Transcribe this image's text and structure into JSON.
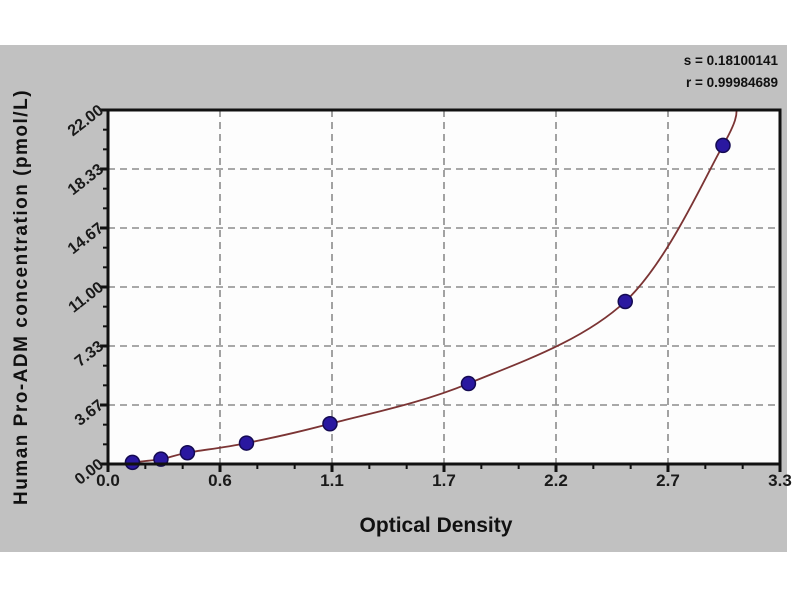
{
  "stats": {
    "line1": "s = 0.18100141",
    "line2": "r = 0.99984689"
  },
  "chart_data": {
    "type": "scatter",
    "title": "",
    "xlabel": "Optical Density",
    "ylabel": "Human Pro-ADM concentration (pmol/L)",
    "x": [
      0.12,
      0.26,
      0.39,
      0.68,
      1.09,
      1.77,
      2.54,
      3.02
    ],
    "y": [
      0.1,
      0.3,
      0.7,
      1.3,
      2.5,
      5.0,
      10.1,
      19.8
    ],
    "xlim": [
      0,
      3.3
    ],
    "ylim": [
      0,
      22
    ],
    "xticks": {
      "values": [
        0,
        0.55,
        1.1,
        1.65,
        2.2,
        2.75,
        3.3
      ],
      "labels": [
        "0.0",
        "0.6",
        "1.1",
        "1.7",
        "2.2",
        "2.7",
        "3.3"
      ]
    },
    "yticks": {
      "values": [
        0,
        3.667,
        7.333,
        11,
        14.667,
        18.333,
        22
      ],
      "labels": [
        "0.00",
        "3.67",
        "7.33",
        "11.00",
        "14.67",
        "18.33",
        "22.00"
      ]
    },
    "minor_ticks_per_interval": 2,
    "grid": "dashed",
    "legend": "none",
    "fit_curve": {
      "points": [
        [
          0.1,
          0.02
        ],
        [
          0.12,
          0.1
        ],
        [
          0.26,
          0.3
        ],
        [
          0.39,
          0.7
        ],
        [
          0.68,
          1.3
        ],
        [
          1.09,
          2.5
        ],
        [
          1.77,
          5.0
        ],
        [
          2.54,
          10.1
        ],
        [
          3.02,
          19.8
        ],
        [
          3.09,
          22.3
        ]
      ],
      "color": "#7b3434"
    },
    "marker": {
      "shape": "circle",
      "color": "#2a18a0",
      "edge_color": "#140a52",
      "radius": 7
    },
    "colors": {
      "panel_background": "#c1c1c1",
      "plot_background": "#fdfdfd",
      "gridline": "#8c8c8c",
      "axis_border": "#111111",
      "tick": "#111111"
    }
  }
}
